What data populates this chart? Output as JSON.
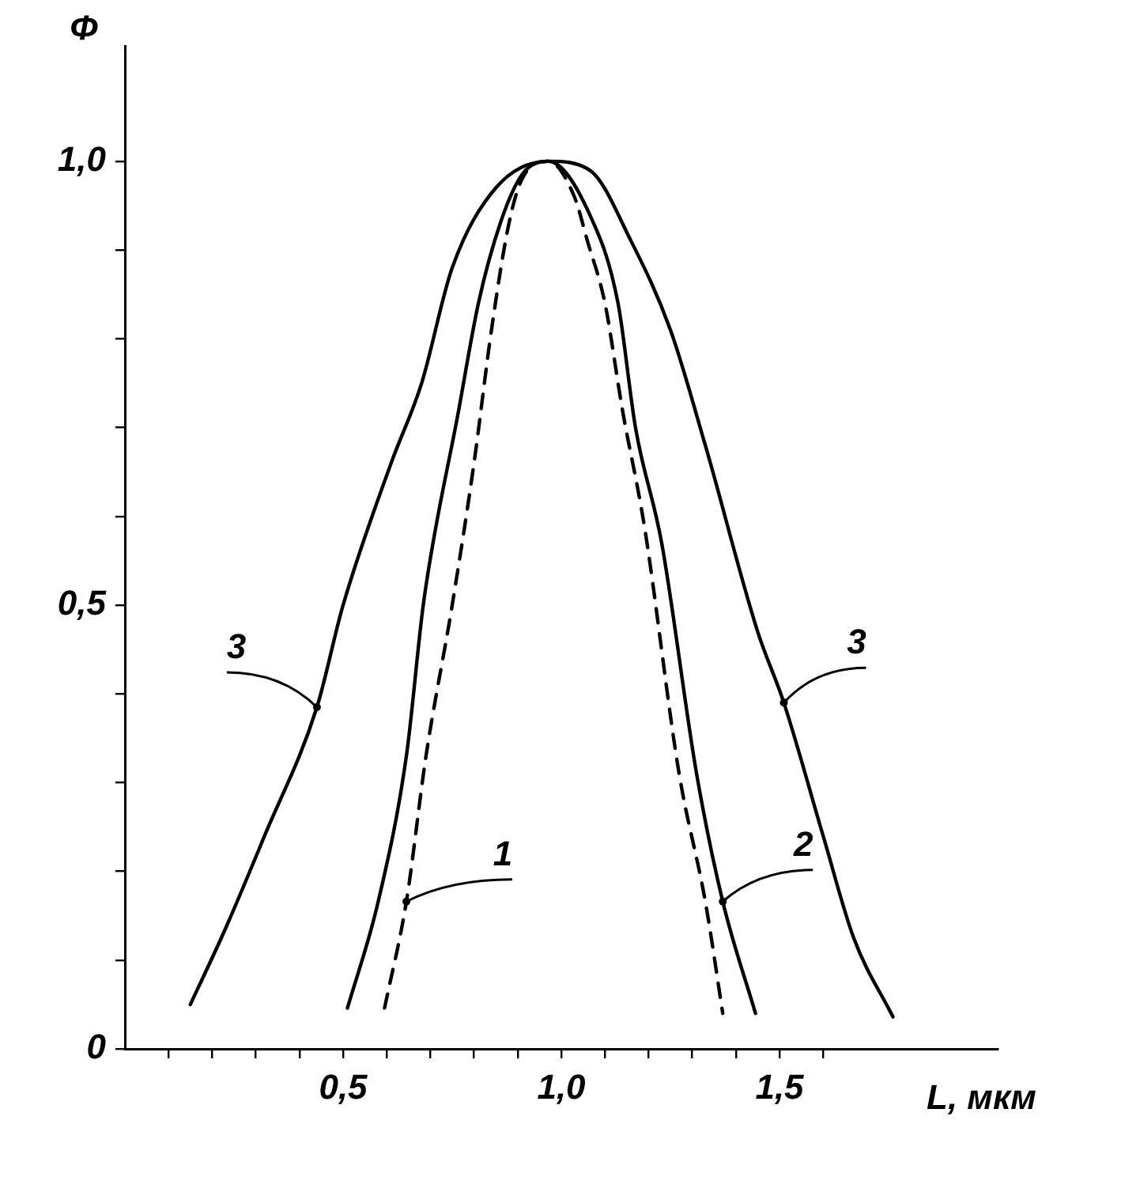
{
  "chart_data": {
    "type": "line",
    "xlabel": "L, мкм",
    "ylabel": "Φ",
    "xlim": [
      0,
      2.0
    ],
    "ylim": [
      0,
      1.13
    ],
    "xticks": [
      {
        "value": 0.1,
        "label": null
      },
      {
        "value": 0.2,
        "label": null
      },
      {
        "value": 0.3,
        "label": null
      },
      {
        "value": 0.4,
        "label": null
      },
      {
        "value": 0.5,
        "label": "0,5"
      },
      {
        "value": 0.6,
        "label": null
      },
      {
        "value": 0.7,
        "label": null
      },
      {
        "value": 0.8,
        "label": null
      },
      {
        "value": 0.9,
        "label": null
      },
      {
        "value": 1.0,
        "label": "1,0"
      },
      {
        "value": 1.1,
        "label": null
      },
      {
        "value": 1.2,
        "label": null
      },
      {
        "value": 1.3,
        "label": null
      },
      {
        "value": 1.4,
        "label": null
      },
      {
        "value": 1.5,
        "label": "1,5"
      },
      {
        "value": 1.6,
        "label": null
      }
    ],
    "yticks": [
      0,
      {
        "value": 0.1,
        "label": null
      },
      {
        "value": 0.2,
        "label": null
      },
      {
        "value": 0.3,
        "label": null
      },
      {
        "value": 0.4,
        "label": null
      },
      {
        "value": 0.5,
        "label": "0,5"
      },
      {
        "value": 0.6,
        "label": null
      },
      {
        "value": 0.7,
        "label": null
      },
      {
        "value": 0.8,
        "label": null
      },
      {
        "value": 0.9,
        "label": null
      },
      {
        "value": 1.0,
        "label": "1,0"
      }
    ],
    "grid": false,
    "legend": false,
    "marker": "none",
    "series": [
      {
        "name": "1",
        "color": "#000000",
        "line_style": "dashed",
        "x": [
          0.595,
          0.645,
          0.69,
          0.75,
          0.8,
          0.84,
          0.88,
          0.91,
          0.97,
          1.03,
          1.06,
          1.1,
          1.14,
          1.19,
          1.27,
          1.33,
          1.37
        ],
        "values": [
          0.046,
          0.166,
          0.33,
          0.5,
          0.66,
          0.81,
          0.93,
          0.98,
          1.0,
          0.96,
          0.91,
          0.84,
          0.72,
          0.59,
          0.31,
          0.166,
          0.04
        ]
      },
      {
        "name": "2",
        "color": "#000000",
        "line_style": "solid",
        "x": [
          0.51,
          0.58,
          0.645,
          0.685,
          0.765,
          0.81,
          0.86,
          0.91,
          0.97,
          1.065,
          1.13,
          1.17,
          1.23,
          1.31,
          1.37,
          1.445
        ],
        "values": [
          0.046,
          0.165,
          0.33,
          0.505,
          0.72,
          0.84,
          0.93,
          0.985,
          1.0,
          0.94,
          0.84,
          0.7,
          0.57,
          0.31,
          0.166,
          0.04
        ]
      },
      {
        "name": "3",
        "color": "#000000",
        "line_style": "solid",
        "x": [
          0.15,
          0.23,
          0.32,
          0.44,
          0.5,
          0.61,
          0.68,
          0.75,
          0.85,
          0.97,
          1.065,
          1.16,
          1.25,
          1.33,
          1.45,
          1.51,
          1.6,
          1.67,
          1.76
        ],
        "values": [
          0.05,
          0.135,
          0.24,
          0.385,
          0.5,
          0.66,
          0.75,
          0.88,
          0.97,
          1.0,
          0.99,
          0.91,
          0.81,
          0.68,
          0.47,
          0.39,
          0.24,
          0.125,
          0.036
        ]
      }
    ]
  }
}
